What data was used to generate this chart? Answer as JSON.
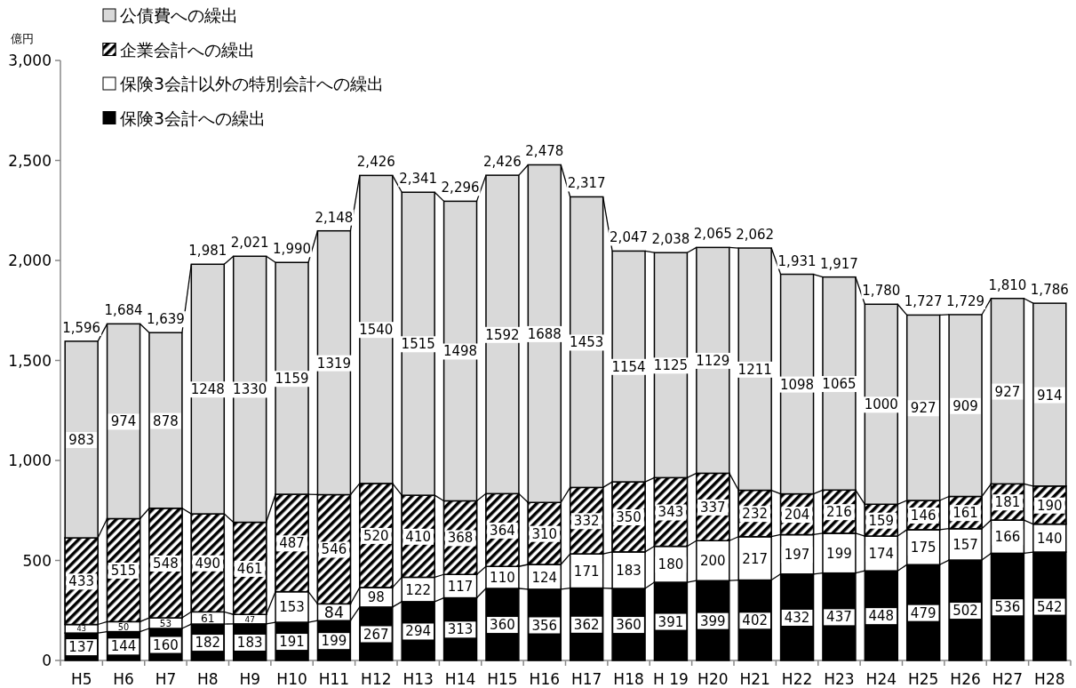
{
  "chart_data": {
    "type": "bar",
    "stacked": true,
    "ylabel": "億円",
    "categories": [
      "H5",
      "H6",
      "H7",
      "H8",
      "H9",
      "H10",
      "H11",
      "H12",
      "H13",
      "H14",
      "H15",
      "H16",
      "H17",
      "H18",
      "H 19",
      "H20",
      "H21",
      "H22",
      "H23",
      "H24",
      "H25",
      "H26",
      "H27",
      "H28"
    ],
    "series": [
      {
        "name": "保険3会計への繰出",
        "color": "#000000",
        "values": [
          137,
          144,
          160,
          182,
          183,
          191,
          199,
          267,
          294,
          313,
          360,
          356,
          362,
          360,
          391,
          399,
          402,
          432,
          437,
          448,
          479,
          502,
          536,
          542
        ]
      },
      {
        "name": "保険3会計以外の特別会計への繰出",
        "color": "#ffffff",
        "values": [
          43,
          50,
          53,
          61,
          47,
          153,
          84,
          98,
          122,
          117,
          110,
          124,
          171,
          183,
          180,
          200,
          217,
          197,
          199,
          174,
          175,
          157,
          166,
          140
        ]
      },
      {
        "name": "企業会計への繰出",
        "color": "#000000",
        "values": [
          433,
          515,
          548,
          490,
          461,
          487,
          546,
          520,
          410,
          368,
          364,
          310,
          332,
          350,
          343,
          337,
          232,
          204,
          216,
          159,
          146,
          161,
          181,
          190
        ]
      },
      {
        "name": "公債費への繰出",
        "color": "#d9d9d9",
        "values": [
          983,
          974,
          878,
          1248,
          1330,
          1159,
          1319,
          1540,
          1515,
          1498,
          1592,
          1688,
          1453,
          1154,
          1125,
          1129,
          1211,
          1098,
          1065,
          1000,
          927,
          909,
          927,
          914
        ]
      }
    ],
    "totals": [
      "1,596",
      "1,684",
      "1,639",
      "1,981",
      "2,021",
      "1,990",
      "2,148",
      "2,426",
      "2,341",
      "2,296",
      "2,426",
      "2,478",
      "2,317",
      "2,047",
      "2,038",
      "2,065",
      "2,062",
      "1,931",
      "1,917",
      "1,780",
      "1,727",
      "1,729",
      "1,810",
      "1,786"
    ],
    "data_labels": true,
    "legend": "top left",
    "grid": false,
    "ylim": [
      0,
      3000
    ],
    "yticks": [
      {
        "value": 0,
        "label": "0"
      },
      {
        "value": 500,
        "label": "500"
      },
      {
        "value": 1000,
        "label": "1,000"
      },
      {
        "value": 1500,
        "label": "1,500"
      },
      {
        "value": 2000,
        "label": "2,000"
      },
      {
        "value": 2500,
        "label": "2,500"
      },
      {
        "value": 3000,
        "label": "3,000"
      }
    ]
  }
}
